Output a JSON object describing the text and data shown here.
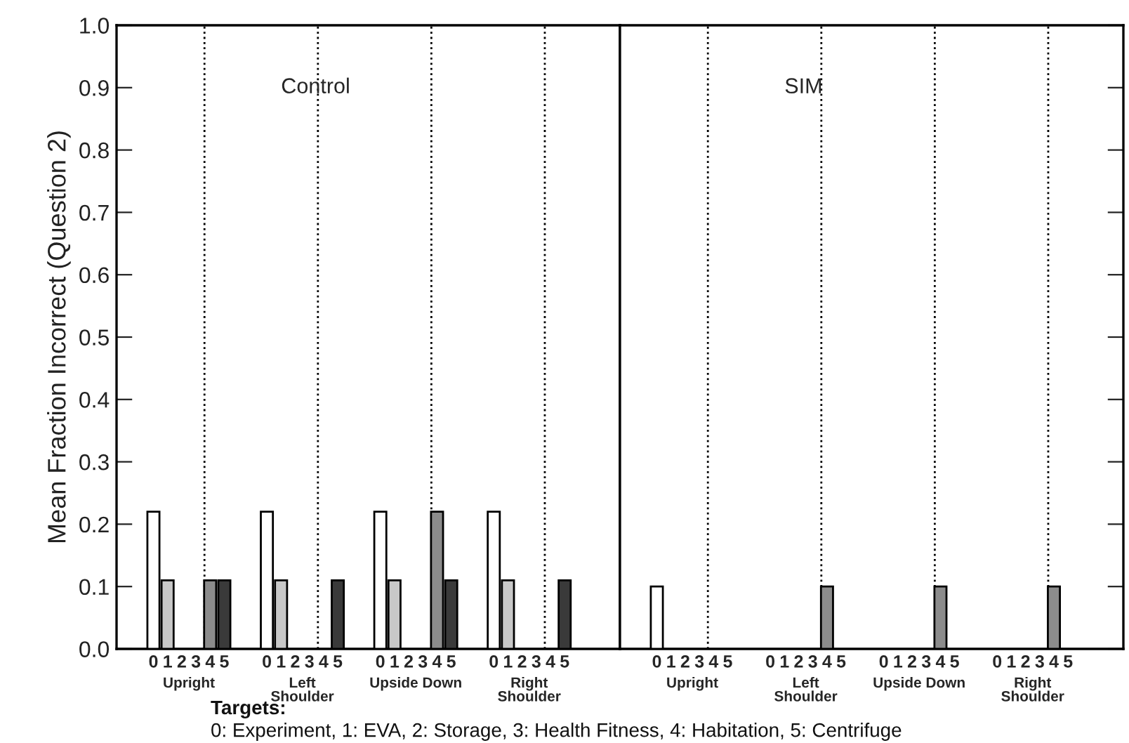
{
  "chart_data": [
    {
      "type": "bar",
      "ylabel": "Mean Fraction Incorrect (Question 2)",
      "categories": [
        "0",
        "1",
        "2",
        "3",
        "4",
        "5",
        null,
        null,
        "0",
        "1",
        "2",
        "3",
        "4",
        "5",
        null,
        null,
        "0",
        "1",
        "2",
        "3",
        "4",
        "5",
        null,
        null,
        "0",
        "1",
        "2",
        "3",
        "4",
        "5"
      ],
      "values": [
        0.22,
        0.11,
        null,
        null,
        0.11,
        0.11,
        null,
        null,
        0.22,
        0.11,
        null,
        null,
        null,
        0.11,
        null,
        null,
        0.22,
        0.11,
        null,
        null,
        0.22,
        0.11,
        null,
        null,
        0.22,
        0.11,
        null,
        null,
        null,
        0.11
      ],
      "colors": [
        "#ffffff",
        "#c8c8c8",
        null,
        null,
        "#8c8c8c",
        "#3a3a3a",
        null,
        null,
        "#ffffff",
        "#c8c8c8",
        null,
        null,
        null,
        "#3a3a3a",
        null,
        null,
        "#ffffff",
        "#c8c8c8",
        null,
        null,
        "#8c8c8c",
        "#3a3a3a",
        null,
        null,
        "#ffffff",
        "#c8c8c8",
        null,
        null,
        null,
        "#3a3a3a"
      ],
      "ylim": [
        0,
        1
      ],
      "yticks": [
        {
          "value": 0,
          "label": "0.0"
        },
        0.1,
        0.2,
        0.3,
        0.4,
        0.5,
        0.6,
        0.7,
        0.8,
        0.9,
        {
          "value": 1,
          "label": "1.0"
        }
      ],
      "annotations": [
        "Upright",
        "Left\nShoulder",
        "Upside Down",
        "Right\nShoulder",
        "Control",
        "Targets:",
        "0: Experiment, 1: EVA, 2: Storage, 3: Health Fitness, 4: Habitation, 5: Centrifuge"
      ]
    },
    {
      "type": "bar",
      "categories": [
        "0",
        "1",
        "2",
        "3",
        "4",
        "5",
        null,
        null,
        "0",
        "1",
        "2",
        "3",
        "4",
        "5",
        null,
        null,
        "0",
        "1",
        "2",
        "3",
        "4",
        "5",
        null,
        null,
        "0",
        "1",
        "2",
        "3",
        "4",
        "5"
      ],
      "values": [
        0.1,
        null,
        null,
        null,
        null,
        null,
        null,
        null,
        null,
        null,
        null,
        null,
        0.1,
        null,
        null,
        null,
        null,
        null,
        null,
        null,
        0.1,
        null,
        null,
        null,
        null,
        null,
        null,
        null,
        0.1,
        null
      ],
      "colors": [
        "#ffffff",
        null,
        null,
        null,
        null,
        null,
        null,
        null,
        null,
        null,
        null,
        null,
        "#8c8c8c",
        null,
        null,
        null,
        null,
        null,
        null,
        null,
        "#8c8c8c",
        null,
        null,
        null,
        null,
        null,
        null,
        null,
        "#8c8c8c",
        null
      ],
      "ylim": [
        0,
        1
      ],
      "yticks": [
        0,
        0.1,
        0.2,
        0.3,
        0.4,
        0.5,
        0.6,
        0.7,
        0.8,
        0.9,
        1
      ],
      "tick_labels": "x",
      "annotations": [
        "Upright",
        "Left\nShoulder",
        "Upside Down",
        "Right\nShoulder",
        "SIM"
      ]
    }
  ]
}
